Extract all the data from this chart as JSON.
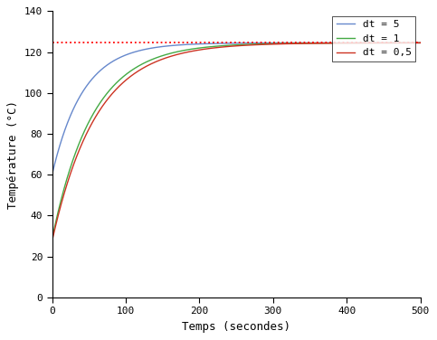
{
  "title": "",
  "xlabel": "Temps (secondes)",
  "ylabel": "Température (°C)",
  "xlim": [
    0,
    500
  ],
  "ylim": [
    0,
    140
  ],
  "yticks": [
    0,
    20,
    40,
    60,
    80,
    100,
    120,
    140
  ],
  "xticks": [
    0,
    100,
    200,
    300,
    400,
    500
  ],
  "T_inf": 124.5,
  "T0_dt5": 60.0,
  "T0_dt1": 28.5,
  "T0_dt05": 27.5,
  "tau_dt5": 42.0,
  "tau_dt1": 55.0,
  "tau_dt05": 60.0,
  "hline_y": 124.5,
  "hline_color": "#ff0000",
  "color_dt5": "#6688cc",
  "color_dt1": "#44aa44",
  "color_dt05": "#cc3322",
  "legend_labels": [
    "dt = 5",
    "dt = 1",
    "dt = 0,5"
  ],
  "bg_color": "#ffffff",
  "plot_bg": "#ffffff",
  "linewidth": 1.0,
  "font_family": "DejaVu Sans Mono",
  "tick_fontsize": 8,
  "label_fontsize": 9
}
